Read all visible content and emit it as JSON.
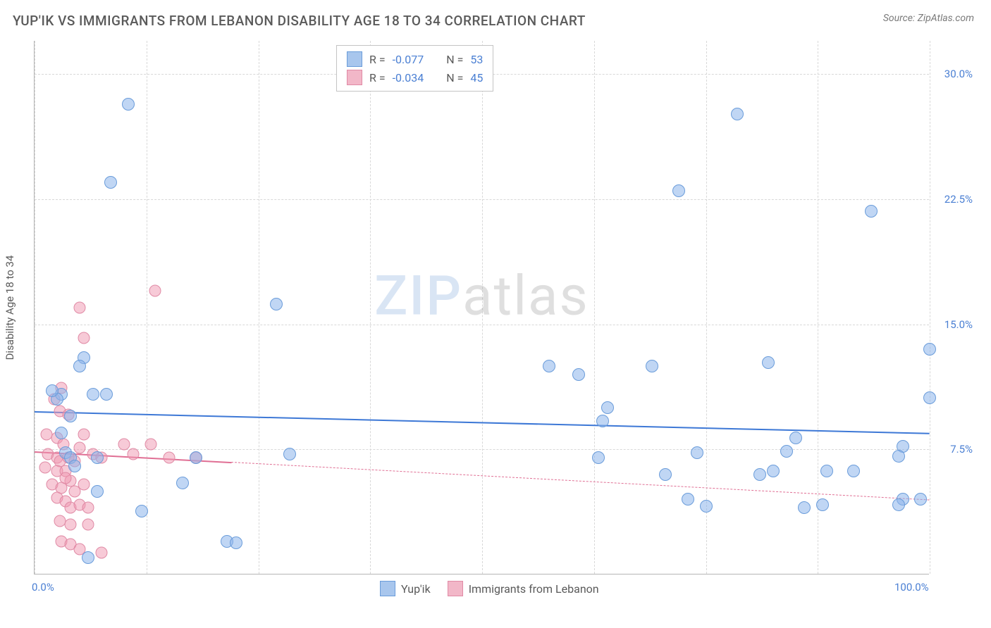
{
  "title": "YUP'IK VS IMMIGRANTS FROM LEBANON DISABILITY AGE 18 TO 34 CORRELATION CHART",
  "source": "Source: ZipAtlas.com",
  "watermark_a": "ZIP",
  "watermark_b": "atlas",
  "chart": {
    "type": "scatter",
    "y_axis_label": "Disability Age 18 to 34",
    "xlim": [
      0,
      100
    ],
    "ylim": [
      0,
      32
    ],
    "y_ticks": [
      7.5,
      15.0,
      22.5,
      30.0
    ],
    "y_tick_labels": [
      "7.5%",
      "15.0%",
      "22.5%",
      "30.0%"
    ],
    "x_ticks": [
      0,
      50,
      100
    ],
    "x_tick_labels": [
      "0.0%",
      "",
      "100.0%"
    ],
    "x_minor_ticks": [
      12.5,
      25,
      37.5,
      62.5,
      75,
      87.5
    ],
    "background_color": "#ffffff",
    "grid_color": "#d8d8d8",
    "axis_color": "#b5b5b5",
    "series": [
      {
        "name": "Yup'ik",
        "color_fill": "rgba(140,180,235,0.55)",
        "color_stroke": "#6a9cda",
        "color_swatch": "#a8c6ed",
        "R": "-0.077",
        "N": "53",
        "trend": {
          "x1": 0,
          "y1": 9.8,
          "x2": 100,
          "y2": 8.5,
          "color": "#3d78d6",
          "solid_until": 100
        },
        "points": [
          [
            10.5,
            28.2
          ],
          [
            78.5,
            27.6
          ],
          [
            8.5,
            23.5
          ],
          [
            72,
            23.0
          ],
          [
            93.5,
            21.8
          ],
          [
            27,
            16.2
          ],
          [
            100,
            13.5
          ],
          [
            5.5,
            13.0
          ],
          [
            5,
            12.5
          ],
          [
            82,
            12.7
          ],
          [
            69,
            12.5
          ],
          [
            57.5,
            12.5
          ],
          [
            60.8,
            12.0
          ],
          [
            100,
            10.6
          ],
          [
            3,
            10.8
          ],
          [
            6.5,
            10.8
          ],
          [
            8,
            10.8
          ],
          [
            64,
            10.0
          ],
          [
            63.5,
            9.2
          ],
          [
            97,
            7.7
          ],
          [
            96.5,
            7.1
          ],
          [
            85,
            8.2
          ],
          [
            84,
            7.4
          ],
          [
            74,
            7.3
          ],
          [
            63,
            7.0
          ],
          [
            70.5,
            6.0
          ],
          [
            81,
            6.0
          ],
          [
            7,
            7.0
          ],
          [
            18,
            7.0
          ],
          [
            16.5,
            5.5
          ],
          [
            82.5,
            6.2
          ],
          [
            88.5,
            6.2
          ],
          [
            91.5,
            6.2
          ],
          [
            73,
            4.5
          ],
          [
            75,
            4.1
          ],
          [
            86,
            4.0
          ],
          [
            88,
            4.2
          ],
          [
            97,
            4.5
          ],
          [
            99,
            4.5
          ],
          [
            96.5,
            4.2
          ],
          [
            3.5,
            7.3
          ],
          [
            28.5,
            7.2
          ],
          [
            12,
            3.8
          ],
          [
            21.5,
            2.0
          ],
          [
            22.5,
            1.9
          ],
          [
            4,
            7.0
          ],
          [
            2.5,
            10.5
          ],
          [
            4,
            9.5
          ],
          [
            2,
            11.0
          ],
          [
            3,
            8.5
          ],
          [
            7,
            5.0
          ],
          [
            6,
            1.0
          ],
          [
            4.5,
            6.5
          ]
        ]
      },
      {
        "name": "Immigrants from Lebanon",
        "color_fill": "rgba(240,150,175,0.5)",
        "color_stroke": "#e08aa5",
        "color_swatch": "#f2b7c8",
        "R": "-0.034",
        "N": "45",
        "trend": {
          "x1": 0,
          "y1": 7.4,
          "x2": 100,
          "y2": 4.5,
          "color": "#e06f94",
          "solid_until": 22
        },
        "points": [
          [
            13.5,
            17.0
          ],
          [
            5,
            16.0
          ],
          [
            5.5,
            14.2
          ],
          [
            3,
            11.2
          ],
          [
            2.2,
            10.5
          ],
          [
            2.8,
            9.8
          ],
          [
            3.8,
            9.6
          ],
          [
            1.3,
            8.4
          ],
          [
            2.5,
            8.2
          ],
          [
            3.2,
            7.8
          ],
          [
            5.5,
            8.4
          ],
          [
            5,
            7.6
          ],
          [
            1.5,
            7.2
          ],
          [
            2.5,
            7.0
          ],
          [
            2.8,
            6.8
          ],
          [
            3.8,
            7.0
          ],
          [
            4.5,
            6.8
          ],
          [
            6.5,
            7.2
          ],
          [
            7.5,
            7.0
          ],
          [
            10,
            7.8
          ],
          [
            13,
            7.8
          ],
          [
            11,
            7.2
          ],
          [
            15,
            7.0
          ],
          [
            18,
            7.0
          ],
          [
            1.2,
            6.4
          ],
          [
            2.5,
            6.2
          ],
          [
            3.5,
            6.2
          ],
          [
            4,
            5.6
          ],
          [
            2,
            5.4
          ],
          [
            3,
            5.2
          ],
          [
            4.5,
            5.0
          ],
          [
            5.5,
            5.4
          ],
          [
            2.5,
            4.6
          ],
          [
            3.5,
            4.4
          ],
          [
            4,
            4.0
          ],
          [
            5,
            4.2
          ],
          [
            6,
            4.0
          ],
          [
            2.8,
            3.2
          ],
          [
            4,
            3.0
          ],
          [
            6,
            3.0
          ],
          [
            3,
            2.0
          ],
          [
            4,
            1.8
          ],
          [
            5,
            1.5
          ],
          [
            7.5,
            1.3
          ],
          [
            3.5,
            5.8
          ]
        ]
      }
    ],
    "top_legend_rows": [
      {
        "swatch_idx": 0,
        "r_label": "R =",
        "r_val": "-0.077",
        "n_label": "N =",
        "n_val": "53"
      },
      {
        "swatch_idx": 1,
        "r_label": "R =",
        "r_val": "-0.034",
        "n_label": "N =",
        "n_val": "45"
      }
    ],
    "bottom_legend": [
      {
        "swatch_idx": 0,
        "label": "Yup'ik"
      },
      {
        "swatch_idx": 1,
        "label": "Immigrants from Lebanon"
      }
    ]
  }
}
